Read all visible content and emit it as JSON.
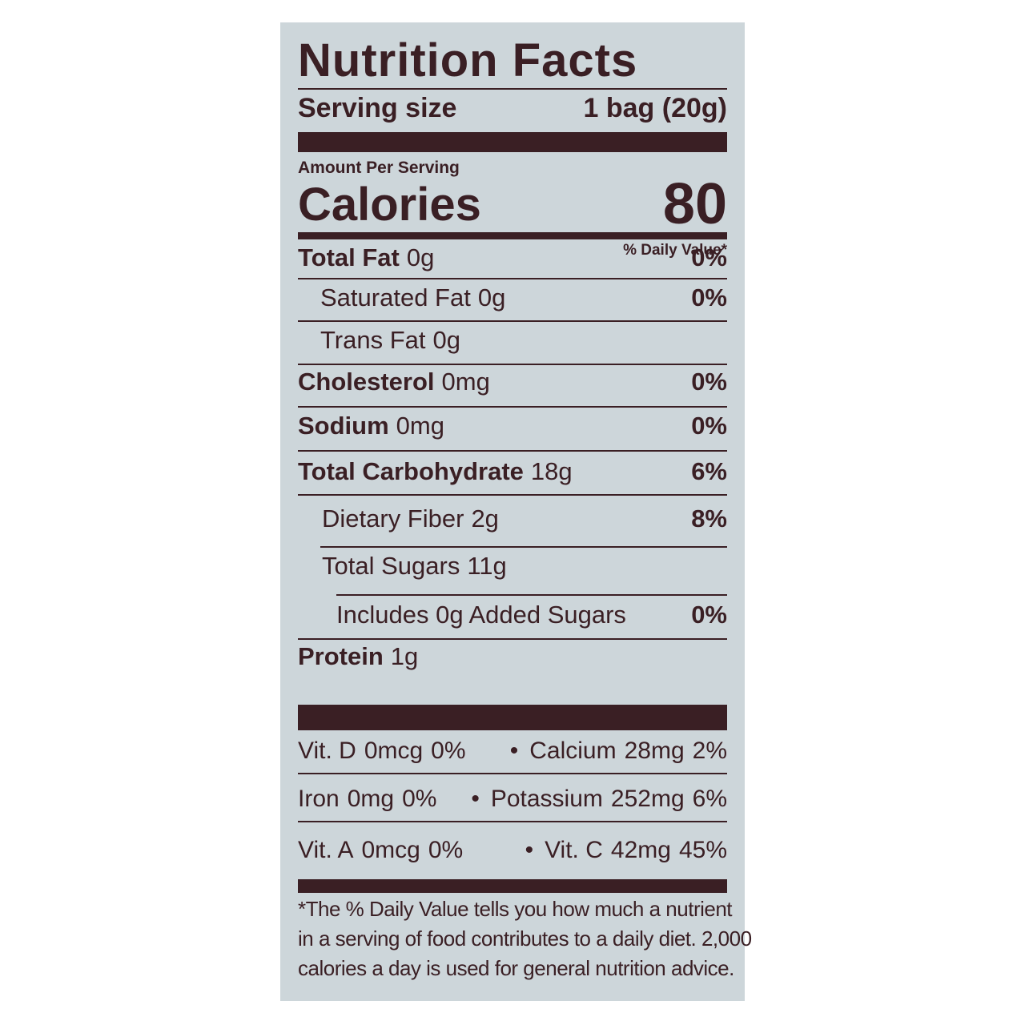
{
  "header": {
    "title": "Nutrition Facts",
    "serving_label": "Serving size",
    "serving_value": "1 bag (20g)"
  },
  "calories": {
    "amount_label": "Amount Per Serving",
    "label": "Calories",
    "value": "80"
  },
  "dv_header": "% Daily Value*",
  "nutrients": [
    {
      "name": "Total Fat",
      "amount": "0g",
      "dv": "0%"
    },
    {
      "name": "Saturated Fat",
      "amount": "0g",
      "dv": "0%"
    },
    {
      "name": "Trans Fat",
      "amount": "0g"
    },
    {
      "name": "Cholesterol",
      "amount": "0mg",
      "dv": "0%"
    },
    {
      "name": "Sodium",
      "amount": "0mg",
      "dv": "0%"
    },
    {
      "name": "Total Carbohydrate",
      "amount": "18g",
      "dv": "6%"
    },
    {
      "name": "Dietary Fiber",
      "amount": "2g",
      "dv": "8%"
    },
    {
      "name": "Total Sugars",
      "amount": "11g"
    },
    {
      "name": "Includes 0g Added Sugars",
      "dv": "0%"
    },
    {
      "name": "Protein",
      "amount": "1g"
    }
  ],
  "separator": "•",
  "vitamins": [
    [
      {
        "name": "Vit. D",
        "amount": "0mcg",
        "dv": "0%"
      },
      {
        "name": "Calcium",
        "amount": "28mg",
        "dv": "2%"
      }
    ],
    [
      {
        "name": "Iron",
        "amount": "0mg",
        "dv": "0%"
      },
      {
        "name": "Potassium",
        "amount": "252mg",
        "dv": "6%"
      }
    ],
    [
      {
        "name": "Vit. A",
        "amount": "0mcg",
        "dv": "0%"
      },
      {
        "name": "Vit. C",
        "amount": "42mg",
        "dv": "45%"
      }
    ]
  ],
  "footnote": [
    "*The % Daily Value tells you how much a nutrient",
    "in a serving of food contributes to a daily diet. 2,000",
    "calories a day is used for general nutrition advice."
  ]
}
